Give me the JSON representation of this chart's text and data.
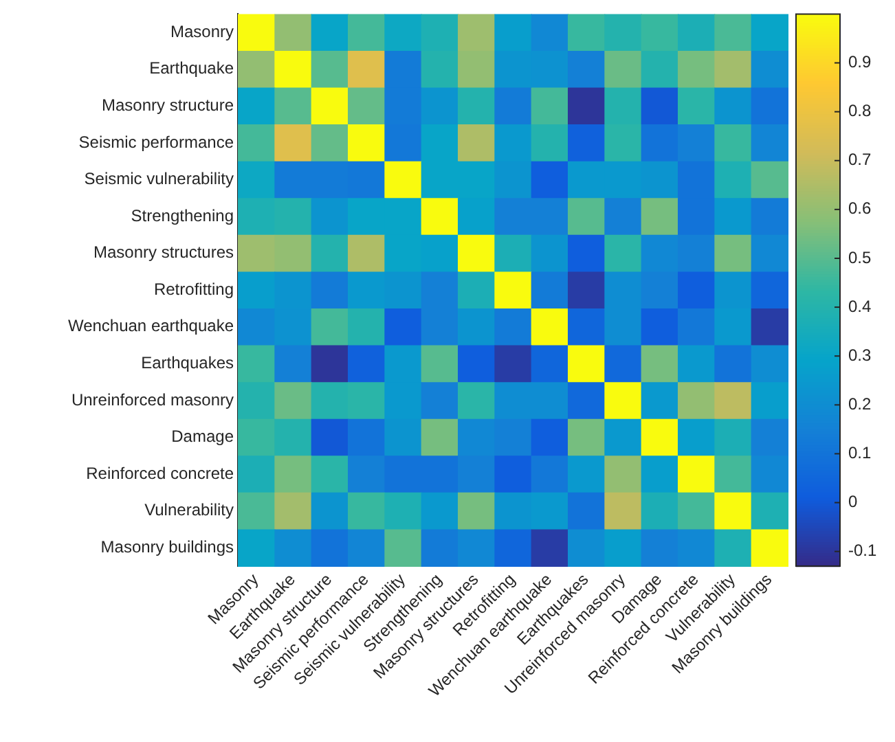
{
  "chart_data": {
    "type": "heatmap",
    "categories": [
      "Masonry",
      "Earthquake",
      "Masonry structure",
      "Seismic performance",
      "Seismic vulnerability",
      "Strengthening",
      "Masonry structures",
      "Retrofitting",
      "Wenchuan earthquake",
      "Earthquakes",
      "Unreinforced masonry",
      "Damage",
      "Reinforced concrete",
      "Vulnerability",
      "Masonry buildings"
    ],
    "y_categories": [
      "Masonry",
      "Earthquake",
      "Masonry structure",
      "Seismic performance",
      "Seismic vulnerability",
      "Strengthening",
      "Masonry structures",
      "Retrofitting",
      "Wenchuan earthquake",
      "Earthquakes",
      "Unreinforced masonry",
      "Damage",
      "Reinforced concrete",
      "Vulnerability",
      "Masonry buildings"
    ],
    "cells": [
      [
        1,
        0.6,
        0.3,
        0.47,
        0.32,
        0.38,
        0.62,
        0.27,
        0.18,
        0.45,
        0.4,
        0.45,
        0.37,
        0.48,
        0.3
      ],
      [
        0.6,
        1,
        0.5,
        0.76,
        0.13,
        0.4,
        0.6,
        0.23,
        0.22,
        0.15,
        0.53,
        0.4,
        0.55,
        0.63,
        0.2
      ],
      [
        0.3,
        0.5,
        1,
        0.52,
        0.13,
        0.23,
        0.4,
        0.13,
        0.47,
        -0.1,
        0.4,
        0.0,
        0.42,
        0.23,
        0.1
      ],
      [
        0.47,
        0.76,
        0.52,
        1,
        0.12,
        0.3,
        0.65,
        0.25,
        0.4,
        0.03,
        0.42,
        0.1,
        0.15,
        0.45,
        0.17
      ],
      [
        0.32,
        0.13,
        0.13,
        0.12,
        1,
        0.3,
        0.3,
        0.23,
        0.02,
        0.25,
        0.25,
        0.23,
        0.1,
        0.38,
        0.5
      ],
      [
        0.38,
        0.4,
        0.23,
        0.3,
        0.3,
        1,
        0.28,
        0.15,
        0.15,
        0.5,
        0.15,
        0.55,
        0.1,
        0.25,
        0.13
      ],
      [
        0.62,
        0.6,
        0.4,
        0.65,
        0.3,
        0.28,
        1,
        0.37,
        0.23,
        0.02,
        0.42,
        0.18,
        0.15,
        0.55,
        0.18
      ],
      [
        0.27,
        0.23,
        0.13,
        0.25,
        0.23,
        0.15,
        0.37,
        1,
        0.13,
        -0.08,
        0.2,
        0.15,
        0.02,
        0.23,
        0.05
      ],
      [
        0.18,
        0.22,
        0.47,
        0.4,
        0.02,
        0.15,
        0.23,
        0.13,
        1,
        0.05,
        0.2,
        0.02,
        0.12,
        0.25,
        -0.08
      ],
      [
        0.45,
        0.15,
        -0.1,
        0.03,
        0.25,
        0.5,
        0.02,
        -0.08,
        0.05,
        1,
        0.06,
        0.55,
        0.25,
        0.1,
        0.2
      ],
      [
        0.4,
        0.53,
        0.4,
        0.42,
        0.25,
        0.15,
        0.42,
        0.2,
        0.2,
        0.06,
        1,
        0.25,
        0.6,
        0.68,
        0.27
      ],
      [
        0.45,
        0.4,
        0.0,
        0.1,
        0.23,
        0.55,
        0.18,
        0.15,
        0.02,
        0.55,
        0.25,
        1,
        0.27,
        0.37,
        0.15
      ],
      [
        0.37,
        0.55,
        0.42,
        0.15,
        0.1,
        0.1,
        0.15,
        0.02,
        0.12,
        0.25,
        0.6,
        0.27,
        1,
        0.47,
        0.18
      ],
      [
        0.48,
        0.63,
        0.23,
        0.45,
        0.38,
        0.25,
        0.55,
        0.23,
        0.25,
        0.1,
        0.68,
        0.37,
        0.47,
        1,
        0.38
      ],
      [
        0.3,
        0.2,
        0.1,
        0.17,
        0.5,
        0.13,
        0.18,
        0.05,
        -0.08,
        0.2,
        0.27,
        0.15,
        0.18,
        0.38,
        1
      ]
    ],
    "clim": [
      -0.13,
      1
    ],
    "cticks": [
      -0.1,
      0,
      0.1,
      0.2,
      0.3,
      0.4,
      0.5,
      0.6,
      0.7,
      0.8,
      0.9
    ]
  }
}
